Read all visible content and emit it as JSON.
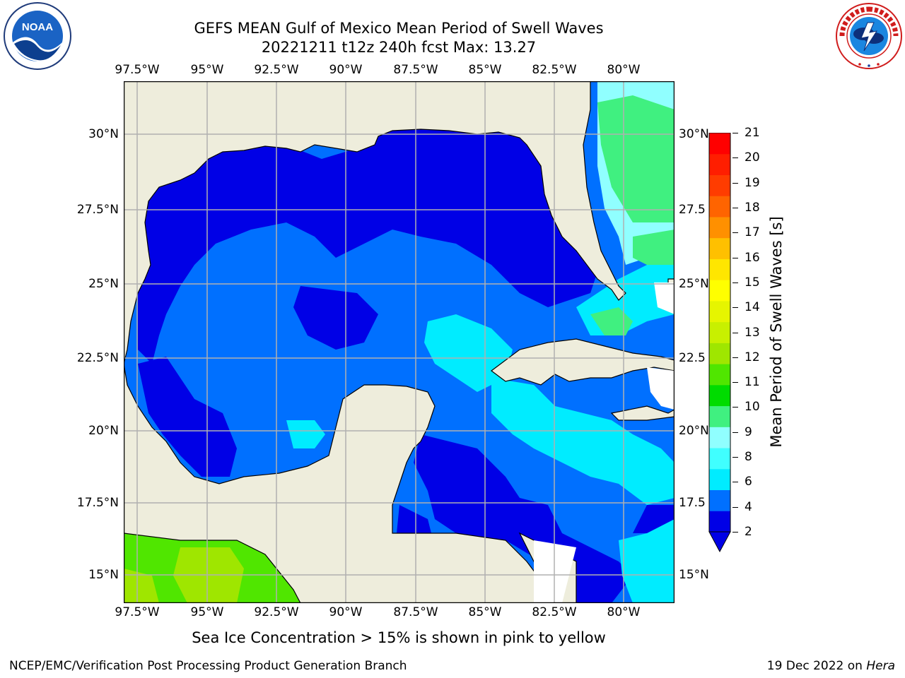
{
  "title": {
    "line1": "GEFS MEAN Gulf of Mexico Mean Period of Swell Waves",
    "line2": "20221211 t12z 240h fcst   Max: 13.27"
  },
  "logos": {
    "left": "noaa-logo",
    "left_ring_text": "NATIONAL OCEANIC AND ATMOSPHERIC ADMINISTRATION · U.S. DEPARTMENT OF COMMERCE",
    "left_center_text": "NOAA",
    "right": "nws-logo",
    "right_ring_text": "NATIONAL WEATHER SERVICE"
  },
  "map": {
    "lon_labels": [
      "97.5°W",
      "95°W",
      "92.5°W",
      "90°W",
      "87.5°W",
      "85°W",
      "82.5°W",
      "80°W"
    ],
    "lat_labels_left": [
      "30°N",
      "27.5°N",
      "25°N",
      "22.5°N",
      "20°N",
      "17.5°N",
      "15°N"
    ],
    "lat_labels_right": [
      "30°N",
      "27.5",
      "25°N",
      "22.5",
      "20°N",
      "17.5",
      "15°N"
    ],
    "colors": {
      "land": "#eeeddc",
      "grid": "#b0b0b0",
      "coast": "#000000",
      "frame": "#000000"
    }
  },
  "colorbar": {
    "label": "Mean Period of Swell Waves [s]",
    "ticks": [
      "21",
      "20",
      "19",
      "18",
      "17",
      "16",
      "15",
      "14",
      "13",
      "12",
      "11",
      "10",
      "9",
      "8",
      "6",
      "4",
      "2"
    ],
    "colors": [
      "#0000e6",
      "#0070ff",
      "#00ecff",
      "#40ffff",
      "#90ffff",
      "#40f080",
      "#00dc00",
      "#50e600",
      "#9fe600",
      "#c8f000",
      "#e6f500",
      "#ffff00",
      "#ffe600",
      "#ffc000",
      "#ff9000",
      "#ff6400",
      "#ff3c00",
      "#ff1e00",
      "#ff0000"
    ],
    "extend": "min"
  },
  "note": "Sea Ice Concentration > 15% is shown in pink to yellow",
  "credit_left": "NCEP/EMC/Verification Post Processing Product Generation Branch",
  "credit_right_date": "19 Dec 2022 on",
  "credit_right_machine": "Hera"
}
